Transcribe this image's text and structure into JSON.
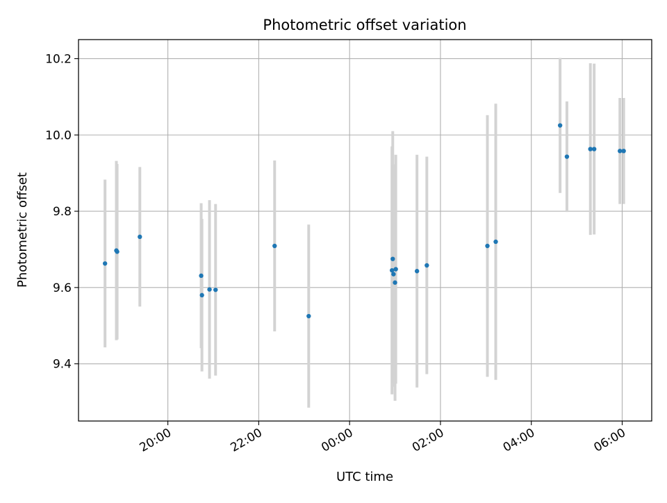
{
  "chart_data": {
    "type": "scatter",
    "title": "Photometric offset variation",
    "xlabel": "UTC time",
    "ylabel": "Photometric offset",
    "x_tick_labels": [
      "20:00",
      "22:00",
      "00:00",
      "02:00",
      "04:00",
      "06:00"
    ],
    "x_ticks": [
      "20:00",
      "22:00",
      "00:00",
      "02:00",
      "04:00",
      "06:00"
    ],
    "y_tick_labels": [
      "9.4",
      "9.6",
      "9.8",
      "10.0",
      "10.2"
    ],
    "y_ticks": [
      9.4,
      9.6,
      9.8,
      10.0,
      10.2
    ],
    "xlim": [
      "18:02",
      "06:39"
    ],
    "ylim": [
      9.25,
      10.25
    ],
    "grid": true,
    "legend": false,
    "colors": {
      "point": "#1f77b4",
      "errorbar": "#d3d3d3",
      "grid": "#b0b0b0"
    },
    "points": [
      {
        "x": "18:37",
        "y": 9.663,
        "err": 0.22
      },
      {
        "x": "18:52",
        "y": 9.697,
        "err": 0.235
      },
      {
        "x": "18:53",
        "y": 9.694,
        "err": 0.23
      },
      {
        "x": "19:23",
        "y": 9.733,
        "err": 0.183
      },
      {
        "x": "20:44",
        "y": 9.631,
        "err": 0.19
      },
      {
        "x": "20:45",
        "y": 9.58,
        "err": 0.2
      },
      {
        "x": "20:55",
        "y": 9.595,
        "err": 0.234
      },
      {
        "x": "21:03",
        "y": 9.594,
        "err": 0.225
      },
      {
        "x": "22:21",
        "y": 9.709,
        "err": 0.224
      },
      {
        "x": "23:06",
        "y": 9.525,
        "err": 0.24
      },
      {
        "x": "00:56",
        "y": 9.645,
        "err": 0.325
      },
      {
        "x": "00:57",
        "y": 9.675,
        "err": 0.335
      },
      {
        "x": "00:58",
        "y": 9.635,
        "err": 0.285
      },
      {
        "x": "01:00",
        "y": 9.613,
        "err": 0.31
      },
      {
        "x": "01:01",
        "y": 9.648,
        "err": 0.3
      },
      {
        "x": "01:29",
        "y": 9.643,
        "err": 0.305
      },
      {
        "x": "01:42",
        "y": 9.658,
        "err": 0.285
      },
      {
        "x": "03:02",
        "y": 9.709,
        "err": 0.343
      },
      {
        "x": "03:13",
        "y": 9.72,
        "err": 0.362
      },
      {
        "x": "04:38",
        "y": 10.025,
        "err": 0.177
      },
      {
        "x": "04:47",
        "y": 9.943,
        "err": 0.145
      },
      {
        "x": "05:18",
        "y": 9.963,
        "err": 0.225
      },
      {
        "x": "05:23",
        "y": 9.963,
        "err": 0.224
      },
      {
        "x": "05:57",
        "y": 9.958,
        "err": 0.139
      },
      {
        "x": "06:02",
        "y": 9.958,
        "err": 0.139
      }
    ]
  }
}
